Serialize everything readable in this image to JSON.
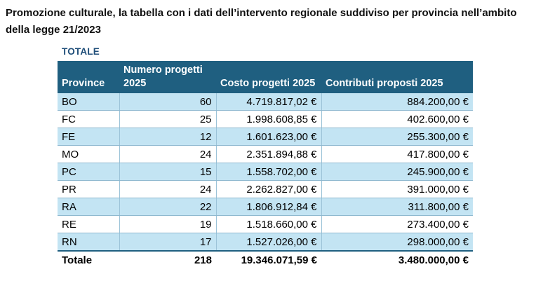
{
  "title": "Promozione culturale, la tabella con i dati dell’intervento regionale suddiviso per provincia nell’ambito della legge 21/2023",
  "section_label": "TOTALE",
  "table": {
    "headers": [
      "Province",
      "Numero progetti 2025",
      "Costo progetti 2025",
      "Contributi proposti 2025"
    ],
    "rows": [
      [
        "BO",
        "60",
        "4.719.817,02 €",
        "884.200,00 €"
      ],
      [
        "FC",
        "25",
        "1.998.608,85 €",
        "402.600,00 €"
      ],
      [
        "FE",
        "12",
        "1.601.623,00 €",
        "255.300,00 €"
      ],
      [
        "MO",
        "24",
        "2.351.894,88 €",
        "417.800,00 €"
      ],
      [
        "PC",
        "15",
        "1.558.702,00 €",
        "245.900,00 €"
      ],
      [
        "PR",
        "24",
        "2.262.827,00 €",
        "391.000,00 €"
      ],
      [
        "RA",
        "22",
        "1.806.912,84 €",
        "311.800,00 €"
      ],
      [
        "RE",
        "19",
        "1.518.660,00 €",
        "273.400,00 €"
      ],
      [
        "RN",
        "17",
        "1.527.026,00 €",
        "298.000,00 €"
      ]
    ],
    "total": [
      "Totale",
      "218",
      "19.346.071,59 €",
      "3.480.000,00 €"
    ]
  },
  "colors": {
    "header_bg": "#1f5f80",
    "header_text": "#ffffff",
    "band_row_bg": "#c3e4f3",
    "section_label": "#1f4e79"
  }
}
